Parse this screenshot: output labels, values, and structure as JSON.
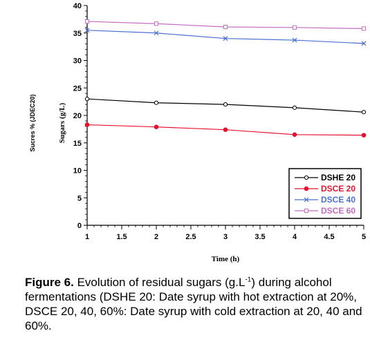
{
  "chart_data": {
    "type": "line",
    "x": [
      1,
      2,
      3,
      4,
      5
    ],
    "xlabel": "Time (h)",
    "ylabel": "Sugars (g/L)",
    "ylabel_secondary": "Sucres % (JDEC20)",
    "xlim": [
      1,
      5
    ],
    "ylim": [
      0,
      40
    ],
    "xticks": [
      "1",
      "1.5",
      "2",
      "2.5",
      "3",
      "3.5",
      "4",
      "4.5",
      "5"
    ],
    "yticks": [
      "0",
      "5",
      "10",
      "15",
      "20",
      "25",
      "30",
      "35",
      "40"
    ],
    "grid": false,
    "legend_position": "bottom-right",
    "series": [
      {
        "name": "DSHE 20",
        "color": "#000000",
        "marker": "open-circle",
        "values": [
          23.0,
          22.3,
          22.0,
          21.4,
          20.6
        ]
      },
      {
        "name": "DSCE 20",
        "color": "#e8112d",
        "marker": "filled-circle",
        "values": [
          18.3,
          17.9,
          17.4,
          16.5,
          16.4
        ]
      },
      {
        "name": "DSCE 40",
        "color": "#4a6fd0",
        "marker": "x",
        "values": [
          35.5,
          35.0,
          34.0,
          33.7,
          33.1
        ]
      },
      {
        "name": "DSCE 60",
        "color": "#c26bc2",
        "marker": "open-square",
        "values": [
          37.1,
          36.7,
          36.1,
          36.0,
          35.8
        ]
      }
    ]
  },
  "caption": {
    "label": "Figure 6.",
    "text_before_sup": " Evolution of residual sugars (g.L",
    "sup": "-1",
    "text_after_sup": ") during alcohol fermentations (DSHE 20: Date syrup with hot extraction at 20%, DSCE 20, 40, 60%: Date syrup with cold extraction at 20, 40 and 60%."
  }
}
